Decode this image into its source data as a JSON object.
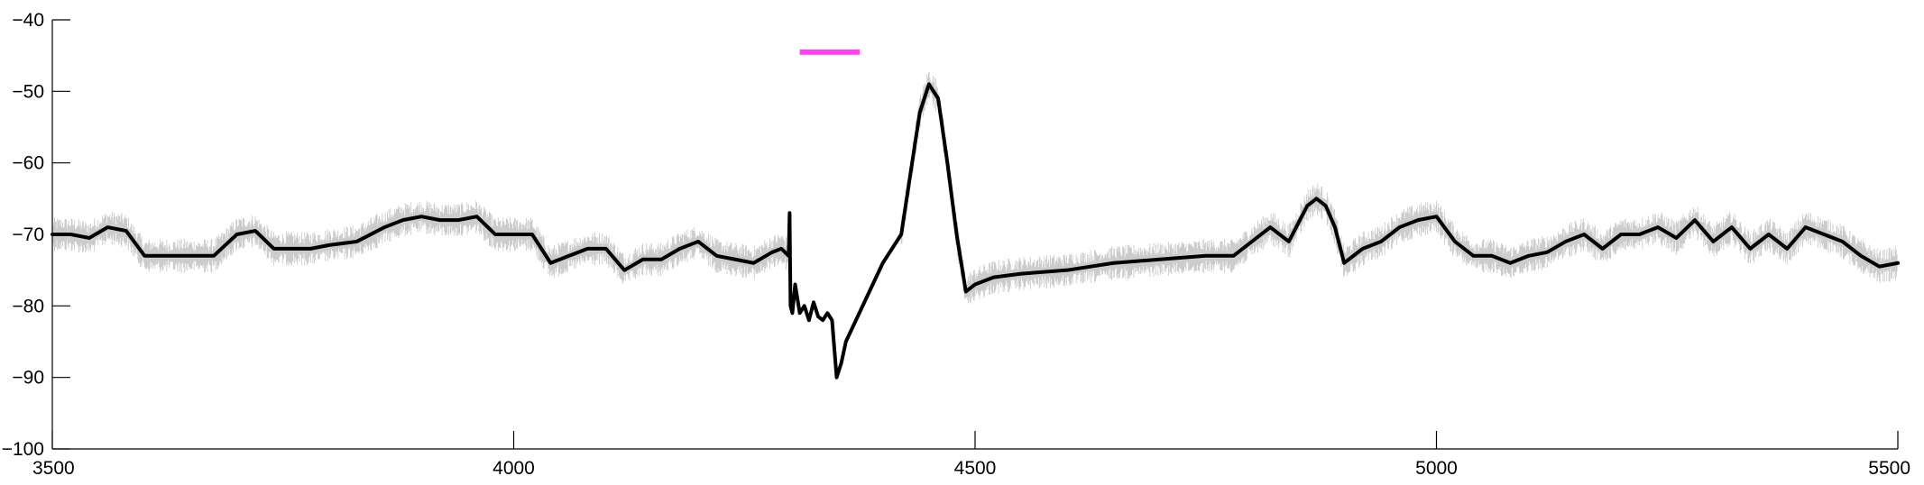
{
  "chart_data": {
    "type": "line",
    "title": "",
    "xlabel": "",
    "ylabel": "",
    "xlim": [
      3500,
      5500
    ],
    "ylim": [
      -100,
      -40
    ],
    "x_ticks": [
      3500,
      4000,
      4500,
      5000,
      5500
    ],
    "y_ticks": [
      -40,
      -50,
      -60,
      -70,
      -80,
      -90,
      -100
    ],
    "x_tick_labels": [
      "3500",
      "4000",
      "4500",
      "5000",
      "5500"
    ],
    "y_tick_labels": [
      "−40",
      "−50",
      "−60",
      "−70",
      "−80",
      "−90",
      "−100"
    ],
    "grid": false,
    "series": [
      {
        "role": "mean",
        "color": "#000000",
        "x": [
          3500,
          3520,
          3540,
          3560,
          3580,
          3600,
          3625,
          3650,
          3675,
          3700,
          3720,
          3740,
          3760,
          3780,
          3800,
          3830,
          3860,
          3880,
          3900,
          3920,
          3940,
          3960,
          3980,
          4000,
          4020,
          4040,
          4060,
          4080,
          4100,
          4120,
          4140,
          4160,
          4180,
          4200,
          4220,
          4240,
          4260,
          4280,
          4290,
          4298,
          4299,
          4300,
          4302,
          4305,
          4310,
          4315,
          4320,
          4325,
          4330,
          4335,
          4340,
          4345,
          4350,
          4355,
          4360,
          4400,
          4420,
          4440,
          4450,
          4460,
          4470,
          4480,
          4490,
          4500,
          4520,
          4550,
          4600,
          4650,
          4700,
          4750,
          4780,
          4800,
          4820,
          4840,
          4860,
          4870,
          4880,
          4890,
          4900,
          4920,
          4940,
          4960,
          4980,
          5000,
          5020,
          5040,
          5060,
          5080,
          5100,
          5120,
          5140,
          5160,
          5180,
          5200,
          5220,
          5240,
          5260,
          5280,
          5300,
          5320,
          5340,
          5360,
          5380,
          5400,
          5420,
          5440,
          5460,
          5480,
          5500
        ],
        "y": [
          -70,
          -70,
          -70.5,
          -69,
          -69.5,
          -73,
          -73,
          -73,
          -73,
          -70,
          -69.5,
          -72,
          -72,
          -72,
          -71.5,
          -71,
          -69,
          -68,
          -67.5,
          -68,
          -68,
          -67.5,
          -70,
          -70,
          -70,
          -74,
          -73,
          -72,
          -72,
          -75,
          -73.5,
          -73.5,
          -72,
          -71,
          -73,
          -73.5,
          -74,
          -72.5,
          -72,
          -73,
          -67,
          -80,
          -81,
          -77,
          -81,
          -80,
          -82,
          -79.5,
          -81.5,
          -82,
          -81,
          -82,
          -90,
          -88,
          -85,
          -74,
          -70,
          -53,
          -49,
          -51,
          -60,
          -70,
          -78,
          -77,
          -76,
          -75.5,
          -75,
          -74,
          -73.5,
          -73,
          -73,
          -71,
          -69,
          -71,
          -66,
          -65,
          -66,
          -69,
          -74,
          -72,
          -71,
          -69,
          -68,
          -67.5,
          -71,
          -73,
          -73,
          -74,
          -73,
          -72.5,
          -71,
          -70,
          -72,
          -70,
          -70,
          -69,
          -70.5,
          -68,
          -71,
          -69,
          -72,
          -70,
          -72,
          -69,
          -70,
          -71,
          -73,
          -74.5,
          -74
        ]
      },
      {
        "role": "noise-band",
        "color": "#cccccc",
        "amplitude": 1.5
      }
    ],
    "annotations": [
      {
        "type": "stimulus-bar",
        "color": "#ff44ee",
        "x": [
          4310,
          4375
        ],
        "y": -44.5
      }
    ]
  }
}
